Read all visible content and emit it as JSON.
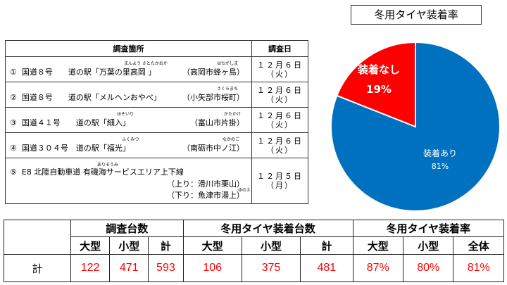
{
  "chart_data": {
    "type": "pie",
    "title": "冬用タイヤ装着率",
    "slices": [
      {
        "label": "装着あり",
        "value": 81,
        "display": "81%",
        "color": "#0070c0"
      },
      {
        "label": "装着なし",
        "value": 19,
        "display": "19%",
        "color": "#ff0000"
      }
    ]
  },
  "survey": {
    "headers": [
      "調査箇所",
      "調査日"
    ],
    "rows": [
      {
        "num": "①",
        "text": "国道８号　　道の駅「万葉の里高岡 」",
        "right": "（高岡市蜂ヶ島）",
        "ruby1": "まんよう さとたかおか",
        "ruby2": "はちがしま",
        "date": "１２月６日",
        "day": "（火）"
      },
      {
        "num": "②",
        "text": "国道８号　　道の駅「メルヘンおやべ」",
        "right": "（小矢部市桜町）",
        "ruby1": "",
        "ruby2": "さくらまち",
        "date": "１２月６日",
        "day": "（火）"
      },
      {
        "num": "③",
        "text": "国道４１号　　道の駅「細入」",
        "right": "（富山市片掛）",
        "ruby1": "ほそいり",
        "ruby2": "かたかけ",
        "date": "１２月６日",
        "day": "（火）"
      },
      {
        "num": "④",
        "text": "国道３０４号　道の駅「福光」",
        "right": "（南砺市中ノ江）",
        "ruby1": "ふくみつ",
        "ruby2": "なかのご",
        "date": "１２月６日",
        "day": "（火）"
      }
    ],
    "row5": {
      "num": "⑤",
      "text": "E8 北陸自動車道 有磯海サービスエリア上下線",
      "ruby1": "ありそうみ",
      "up": "（上り：滑川市栗山）",
      "down": "（下り：魚津市湯上）",
      "ruby2": "ゆのえ",
      "date": "１２月５日",
      "day": "（月）"
    }
  },
  "counts": {
    "groups": [
      "調査台数",
      "冬用タイヤ装着台数",
      "冬用タイヤ装着率"
    ],
    "subheaders": [
      "大型",
      "小型",
      "計",
      "大型",
      "小型",
      "計",
      "大型",
      "小型",
      "全体"
    ],
    "row_label": "計",
    "values": [
      "122",
      "471",
      "593",
      "106",
      "375",
      "481",
      "87%",
      "80%",
      "81%"
    ]
  }
}
